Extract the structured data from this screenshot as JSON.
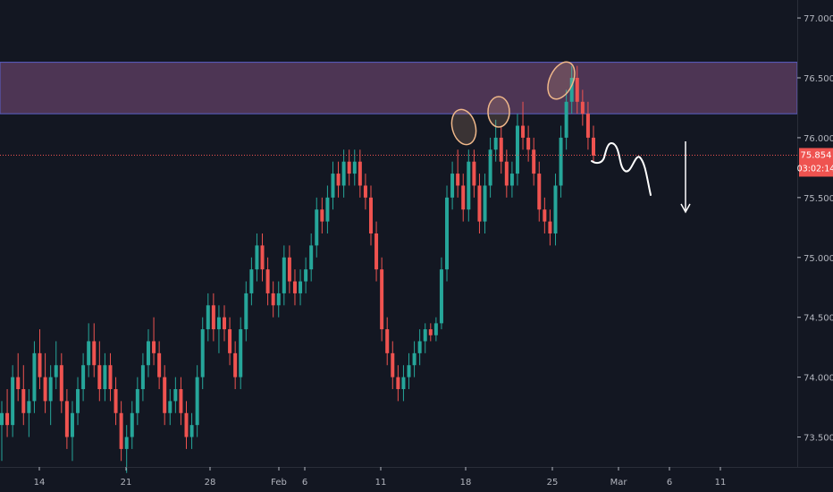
{
  "chart_data": {
    "type": "candlestick",
    "title": "",
    "xlabel": "",
    "ylabel": "",
    "ylim": [
      73.25,
      77.15
    ],
    "x_ticks": [
      "14",
      "21",
      "28",
      "Feb",
      "6",
      "11",
      "18",
      "25",
      "Mar",
      "6",
      "11"
    ],
    "y_ticks": [
      "77.000",
      "76.500",
      "76.000",
      "75.500",
      "75.000",
      "74.500",
      "74.000",
      "73.500"
    ],
    "current_price": "75.854",
    "countdown": "03:02:14",
    "resistance_zone": [
      76.2,
      76.63
    ],
    "grid": false,
    "colors": {
      "background": "#131722",
      "up": "#26a69a",
      "down": "#ef5350",
      "zone_fill": "#7d4e7d",
      "zone_border": "#5b5fc7",
      "price_line": "#ef5350",
      "annotation_circle": "#f0b88a",
      "drawing": "#ffffff"
    },
    "series": [
      {
        "values": [
          [
            73.6,
            73.8,
            73.3,
            73.7
          ],
          [
            73.7,
            73.9,
            73.5,
            73.6
          ],
          [
            73.6,
            74.1,
            73.5,
            74.0
          ],
          [
            74.0,
            74.2,
            73.8,
            73.9
          ],
          [
            73.9,
            74.1,
            73.6,
            73.7
          ],
          [
            73.7,
            73.9,
            73.5,
            73.8
          ],
          [
            73.8,
            74.3,
            73.7,
            74.2
          ],
          [
            74.2,
            74.4,
            73.9,
            74.0
          ],
          [
            74.0,
            74.2,
            73.7,
            73.8
          ],
          [
            73.8,
            74.1,
            73.6,
            74.0
          ],
          [
            74.0,
            74.3,
            73.9,
            74.1
          ],
          [
            74.1,
            74.2,
            73.7,
            73.8
          ],
          [
            73.8,
            73.9,
            73.4,
            73.5
          ],
          [
            73.5,
            73.8,
            73.3,
            73.7
          ],
          [
            73.7,
            74.0,
            73.6,
            73.9
          ],
          [
            73.9,
            74.2,
            73.8,
            74.1
          ],
          [
            74.1,
            74.45,
            74.0,
            74.3
          ],
          [
            74.3,
            74.45,
            74.0,
            74.1
          ],
          [
            74.1,
            74.3,
            73.8,
            73.9
          ],
          [
            73.9,
            74.2,
            73.8,
            74.1
          ],
          [
            74.1,
            74.2,
            73.8,
            73.9
          ],
          [
            73.9,
            74.0,
            73.6,
            73.7
          ],
          [
            73.7,
            73.8,
            73.3,
            73.4
          ],
          [
            73.4,
            73.6,
            73.2,
            73.5
          ],
          [
            73.5,
            73.8,
            73.4,
            73.7
          ],
          [
            73.7,
            74.0,
            73.6,
            73.9
          ],
          [
            73.9,
            74.2,
            73.8,
            74.1
          ],
          [
            74.1,
            74.4,
            74.0,
            74.3
          ],
          [
            74.3,
            74.5,
            74.1,
            74.2
          ],
          [
            74.2,
            74.3,
            73.9,
            74.0
          ],
          [
            74.0,
            74.1,
            73.6,
            73.7
          ],
          [
            73.7,
            73.9,
            73.6,
            73.8
          ],
          [
            73.8,
            74.0,
            73.7,
            73.9
          ],
          [
            73.9,
            74.0,
            73.6,
            73.7
          ],
          [
            73.7,
            73.8,
            73.4,
            73.5
          ],
          [
            73.5,
            73.7,
            73.4,
            73.6
          ],
          [
            73.6,
            74.1,
            73.5,
            74.0
          ],
          [
            74.0,
            74.5,
            73.9,
            74.4
          ],
          [
            74.4,
            74.7,
            74.3,
            74.6
          ],
          [
            74.6,
            74.7,
            74.3,
            74.4
          ],
          [
            74.4,
            74.6,
            74.2,
            74.5
          ],
          [
            74.5,
            74.6,
            74.3,
            74.4
          ],
          [
            74.4,
            74.5,
            74.1,
            74.2
          ],
          [
            74.2,
            74.3,
            73.9,
            74.0
          ],
          [
            74.0,
            74.5,
            73.9,
            74.4
          ],
          [
            74.4,
            74.8,
            74.3,
            74.7
          ],
          [
            74.7,
            75.0,
            74.6,
            74.9
          ],
          [
            74.9,
            75.2,
            74.8,
            75.1
          ],
          [
            75.1,
            75.2,
            74.8,
            74.9
          ],
          [
            74.9,
            75.0,
            74.6,
            74.7
          ],
          [
            74.7,
            74.8,
            74.5,
            74.6
          ],
          [
            74.6,
            74.8,
            74.5,
            74.7
          ],
          [
            74.7,
            75.1,
            74.6,
            75.0
          ],
          [
            75.0,
            75.1,
            74.7,
            74.8
          ],
          [
            74.8,
            74.9,
            74.6,
            74.7
          ],
          [
            74.7,
            74.9,
            74.6,
            74.8
          ],
          [
            74.8,
            75.0,
            74.7,
            74.9
          ],
          [
            74.9,
            75.2,
            74.8,
            75.1
          ],
          [
            75.1,
            75.5,
            75.0,
            75.4
          ],
          [
            75.4,
            75.5,
            75.2,
            75.3
          ],
          [
            75.3,
            75.6,
            75.2,
            75.5
          ],
          [
            75.5,
            75.8,
            75.4,
            75.7
          ],
          [
            75.7,
            75.8,
            75.5,
            75.6
          ],
          [
            75.6,
            75.9,
            75.5,
            75.8
          ],
          [
            75.8,
            75.9,
            75.6,
            75.7
          ],
          [
            75.7,
            75.9,
            75.6,
            75.8
          ],
          [
            75.8,
            75.9,
            75.5,
            75.6
          ],
          [
            75.6,
            75.7,
            75.4,
            75.5
          ],
          [
            75.5,
            75.6,
            75.1,
            75.2
          ],
          [
            75.2,
            75.3,
            74.8,
            74.9
          ],
          [
            74.9,
            75.0,
            74.3,
            74.4
          ],
          [
            74.4,
            74.5,
            74.1,
            74.2
          ],
          [
            74.2,
            74.3,
            73.9,
            74.0
          ],
          [
            74.0,
            74.1,
            73.8,
            73.9
          ],
          [
            73.9,
            74.1,
            73.8,
            74.0
          ],
          [
            74.0,
            74.2,
            73.9,
            74.1
          ],
          [
            74.1,
            74.3,
            74.0,
            74.2
          ],
          [
            74.2,
            74.4,
            74.1,
            74.3
          ],
          [
            74.3,
            74.45,
            74.2,
            74.4
          ],
          [
            74.4,
            74.45,
            74.3,
            74.35
          ],
          [
            74.35,
            74.5,
            74.3,
            74.45
          ],
          [
            74.45,
            75.0,
            74.4,
            74.9
          ],
          [
            74.9,
            75.6,
            74.8,
            75.5
          ],
          [
            75.5,
            75.8,
            75.4,
            75.7
          ],
          [
            75.7,
            75.9,
            75.5,
            75.6
          ],
          [
            75.6,
            75.7,
            75.3,
            75.4
          ],
          [
            75.4,
            75.9,
            75.3,
            75.8
          ],
          [
            75.8,
            75.9,
            75.5,
            75.6
          ],
          [
            75.6,
            75.7,
            75.2,
            75.3
          ],
          [
            75.3,
            75.7,
            75.2,
            75.6
          ],
          [
            75.6,
            76.0,
            75.5,
            75.9
          ],
          [
            75.9,
            76.15,
            75.8,
            76.0
          ],
          [
            76.0,
            76.1,
            75.7,
            75.8
          ],
          [
            75.8,
            75.9,
            75.5,
            75.6
          ],
          [
            75.6,
            75.8,
            75.5,
            75.7
          ],
          [
            75.7,
            76.2,
            75.6,
            76.1
          ],
          [
            76.1,
            76.3,
            75.9,
            76.0
          ],
          [
            76.0,
            76.1,
            75.8,
            75.9
          ],
          [
            75.9,
            76.0,
            75.6,
            75.7
          ],
          [
            75.7,
            75.8,
            75.3,
            75.4
          ],
          [
            75.4,
            75.5,
            75.2,
            75.3
          ],
          [
            75.3,
            75.4,
            75.1,
            75.2
          ],
          [
            75.2,
            75.7,
            75.1,
            75.6
          ],
          [
            75.6,
            76.1,
            75.5,
            76.0
          ],
          [
            76.0,
            76.4,
            75.9,
            76.3
          ],
          [
            76.3,
            76.6,
            76.2,
            76.5
          ],
          [
            76.5,
            76.6,
            76.2,
            76.3
          ],
          [
            76.3,
            76.4,
            76.1,
            76.2
          ],
          [
            76.2,
            76.3,
            75.9,
            76.0
          ],
          [
            76.0,
            76.1,
            75.8,
            75.85
          ]
        ]
      }
    ]
  }
}
